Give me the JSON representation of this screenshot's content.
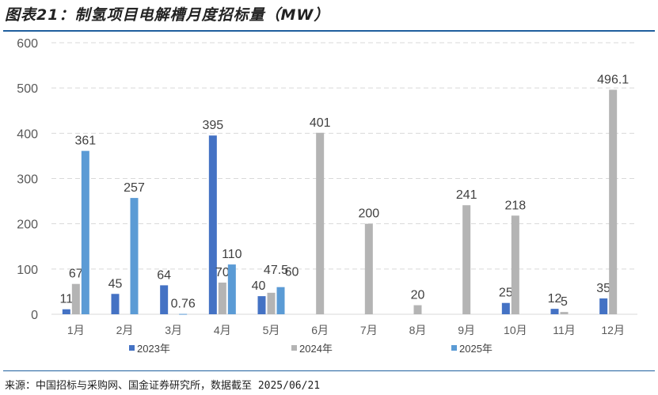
{
  "title": "图表21：制氢项目电解槽月度招标量（MW）",
  "source": "来源：中国招标与采购网、国金证券研究所，数据截至 2025/06/21",
  "chart_data": {
    "type": "bar",
    "title": "图表21：制氢项目电解槽月度招标量（MW）",
    "xlabel": "",
    "ylabel": "",
    "ylim": [
      0,
      600
    ],
    "yticks": [
      0,
      100,
      200,
      300,
      400,
      500,
      600
    ],
    "grid": true,
    "legend_position": "bottom",
    "categories": [
      "1月",
      "2月",
      "3月",
      "4月",
      "5月",
      "6月",
      "7月",
      "8月",
      "9月",
      "10月",
      "11月",
      "12月"
    ],
    "series": [
      {
        "name": "2023年",
        "color": "#4472c4",
        "values": [
          11,
          45,
          64,
          395,
          40,
          null,
          null,
          null,
          null,
          25,
          12,
          35
        ]
      },
      {
        "name": "2024年",
        "color": "#b4b4b4",
        "values": [
          67,
          null,
          null,
          70,
          47.5,
          401,
          200,
          20,
          241,
          218,
          5,
          496.1
        ]
      },
      {
        "name": "2025年",
        "color": "#5b9bd5",
        "values": [
          361,
          257,
          0.76,
          110,
          60,
          null,
          null,
          null,
          null,
          null,
          null,
          null
        ]
      }
    ]
  }
}
